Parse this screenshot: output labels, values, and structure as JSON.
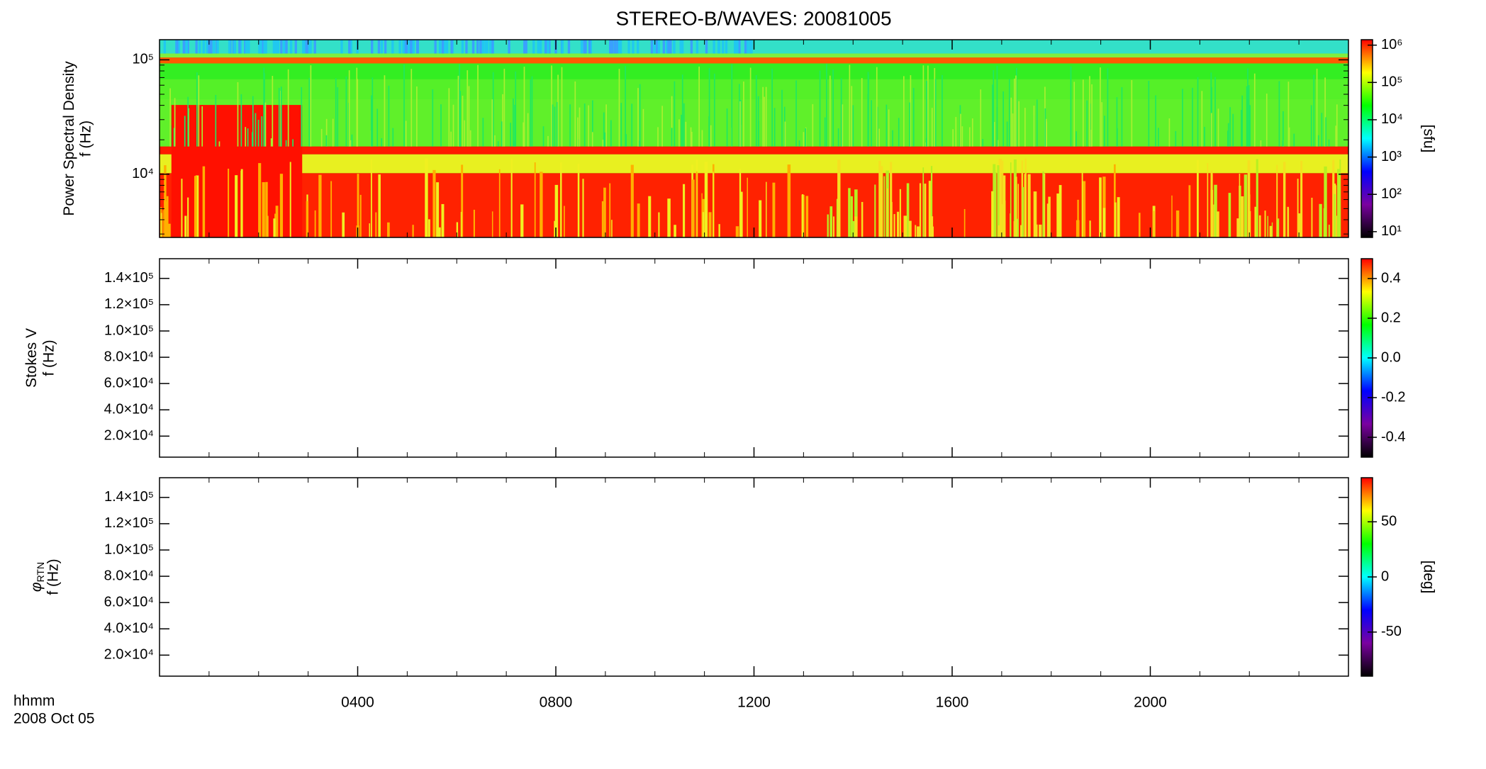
{
  "title": "STEREO-B/WAVES: 20081005",
  "x_caption": "hhmm",
  "date_caption": "2008 Oct 05",
  "colormap": [
    "#000000",
    "#7a00a0",
    "#0000ff",
    "#00ffff",
    "#00ff00",
    "#ffff00",
    "#ff0000"
  ],
  "chart_data": [
    {
      "type": "heatmap",
      "ylabel": "Power Spectral Density",
      "ylabel2": "f (Hz)",
      "ylog": true,
      "ylim": [
        2800,
        150000
      ],
      "yticks": [
        {
          "value": 10000,
          "label": "10⁴"
        },
        {
          "value": 100000,
          "label": "10⁵"
        }
      ],
      "xlim": [
        0,
        24
      ],
      "xticks": [
        4,
        8,
        12,
        16,
        20
      ],
      "colorbar": {
        "label": "[sfu]",
        "log": true,
        "lim": [
          7,
          1400000
        ],
        "ticks": [
          {
            "value": 10,
            "label": "10¹"
          },
          {
            "value": 100,
            "label": "10²"
          },
          {
            "value": 1000,
            "label": "10³"
          },
          {
            "value": 10000,
            "label": "10⁴"
          },
          {
            "value": 100000,
            "label": "10⁵"
          },
          {
            "value": 1000000,
            "label": "10⁶"
          }
        ]
      }
    },
    {
      "type": "heatmap",
      "ylabel": "Stokes V",
      "ylabel2": "f (Hz)",
      "ylim": [
        4000,
        155000
      ],
      "yticks": [
        {
          "value": 20000,
          "label": "2.0×10⁴"
        },
        {
          "value": 40000,
          "label": "4.0×10⁴"
        },
        {
          "value": 60000,
          "label": "6.0×10⁴"
        },
        {
          "value": 80000,
          "label": "8.0×10⁴"
        },
        {
          "value": 100000,
          "label": "1.0×10⁵"
        },
        {
          "value": 120000,
          "label": "1.2×10⁵"
        },
        {
          "value": 140000,
          "label": "1.4×10⁵"
        }
      ],
      "xlim": [
        0,
        24
      ],
      "xticks": [
        4,
        8,
        12,
        16,
        20
      ],
      "colorbar": {
        "lim": [
          -0.5,
          0.5
        ],
        "ticks": [
          -0.4,
          -0.2,
          {
            "value": 0,
            "label": "0.0"
          },
          0.2,
          0.4
        ]
      }
    },
    {
      "type": "heatmap",
      "ylabel": "φ",
      "ylabel_sub": "RTN",
      "ylabel2": "f (Hz)",
      "ylim": [
        4000,
        155000
      ],
      "yticks": [
        {
          "value": 20000,
          "label": "2.0×10⁴"
        },
        {
          "value": 40000,
          "label": "4.0×10⁴"
        },
        {
          "value": 60000,
          "label": "6.0×10⁴"
        },
        {
          "value": 80000,
          "label": "8.0×10⁴"
        },
        {
          "value": 100000,
          "label": "1.0×10⁵"
        },
        {
          "value": 120000,
          "label": "1.2×10⁵"
        },
        {
          "value": 140000,
          "label": "1.4×10⁵"
        }
      ],
      "xlim": [
        0,
        24
      ],
      "xticks": [
        {
          "value": 4,
          "label": "0400"
        },
        {
          "value": 8,
          "label": "0800"
        },
        {
          "value": 12,
          "label": "1200"
        },
        {
          "value": 16,
          "label": "1600"
        },
        {
          "value": 20,
          "label": "2000"
        }
      ],
      "colorbar": {
        "label": "[deg]",
        "lim": [
          -90,
          90
        ],
        "ticks": [
          -50,
          0,
          50
        ]
      }
    }
  ]
}
